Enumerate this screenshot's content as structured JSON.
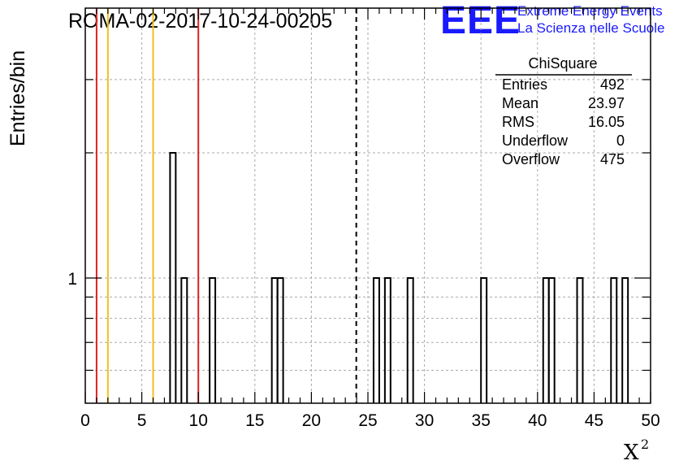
{
  "chart_data": {
    "type": "bar",
    "title": "ROMA-02-2017-10-24-00205",
    "ylabel": "Entries/bin",
    "xlabel": "X",
    "xlabel_superscript": "2",
    "xlim": [
      0,
      50
    ],
    "x_ticks": [
      "0",
      "5",
      "10",
      "15",
      "20",
      "25",
      "30",
      "35",
      "40",
      "45",
      "50"
    ],
    "y_scale": "log",
    "y_tick_labels": [
      "1"
    ],
    "grid": true,
    "bin_width": 0.5,
    "bins": [
      {
        "x": 7.5,
        "y": 2
      },
      {
        "x": 8.5,
        "y": 1
      },
      {
        "x": 11.0,
        "y": 1
      },
      {
        "x": 16.5,
        "y": 1
      },
      {
        "x": 17.0,
        "y": 1
      },
      {
        "x": 25.5,
        "y": 1
      },
      {
        "x": 26.5,
        "y": 1
      },
      {
        "x": 28.5,
        "y": 1
      },
      {
        "x": 35.0,
        "y": 1
      },
      {
        "x": 40.5,
        "y": 1
      },
      {
        "x": 41.0,
        "y": 1
      },
      {
        "x": 43.5,
        "y": 1
      },
      {
        "x": 46.5,
        "y": 1
      },
      {
        "x": 47.5,
        "y": 1
      }
    ],
    "reference_lines": [
      {
        "x": 1,
        "color": "#dd2222",
        "style": "solid"
      },
      {
        "x": 2,
        "color": "#f0c020",
        "style": "solid"
      },
      {
        "x": 6,
        "color": "#f0c020",
        "style": "solid"
      },
      {
        "x": 10,
        "color": "#dd2222",
        "style": "solid"
      },
      {
        "x": 23.97,
        "color": "#000000",
        "style": "dashed"
      }
    ],
    "stats": {
      "title": "ChiSquare",
      "rows": [
        {
          "label": "Entries",
          "value": "492"
        },
        {
          "label": "Mean",
          "value": "23.97"
        },
        {
          "label": "RMS",
          "value": "16.05"
        },
        {
          "label": "Underflow",
          "value": "0"
        },
        {
          "label": "Overflow",
          "value": "475"
        }
      ]
    }
  },
  "logo": {
    "big": "EEE",
    "line1": "Extreme Energy Events",
    "line2": "La Scienza nelle Scuole",
    "color": "#1a1aff"
  }
}
